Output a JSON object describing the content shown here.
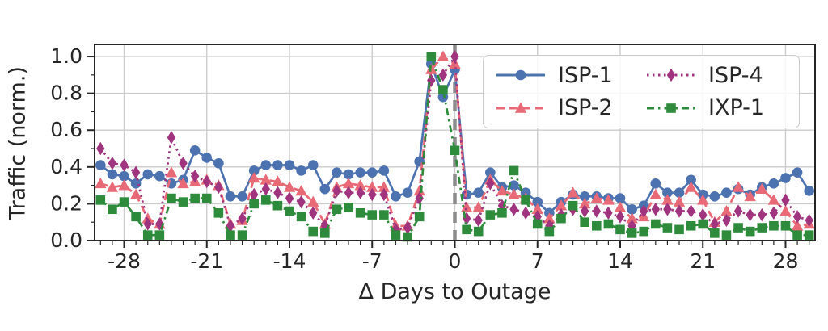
{
  "chart_data": {
    "type": "line",
    "title": "",
    "xlabel": "Δ Days to Outage",
    "ylabel": "Traffic (norm.)",
    "grid": true,
    "legend_position": "upper right",
    "xlim": [
      -30.5,
      30.5
    ],
    "ylim": [
      0,
      1.066
    ],
    "x_ticks": [
      -28,
      -21,
      -14,
      -7,
      0,
      7,
      14,
      21,
      28
    ],
    "x_minor_tick_step": 1,
    "y_ticks": [
      0.0,
      0.2,
      0.4,
      0.6,
      0.8,
      1.0
    ],
    "y_tick_labels": [
      "0.0",
      "0.2",
      "0.4",
      "0.6",
      "0.8",
      "1.0"
    ],
    "y_minor_tick_step": 0.1,
    "outage_line_x": 0,
    "outage_line_color": "#8c8c8c",
    "grid_color": "#cccccc",
    "axis_color": "#262626",
    "x": [
      -30,
      -29,
      -28,
      -27,
      -26,
      -25,
      -24,
      -23,
      -22,
      -21,
      -20,
      -19,
      -18,
      -17,
      -16,
      -15,
      -14,
      -13,
      -12,
      -11,
      -10,
      -9,
      -8,
      -7,
      -6,
      -5,
      -4,
      -3,
      -2,
      -1,
      0,
      1,
      2,
      3,
      4,
      5,
      6,
      7,
      8,
      9,
      10,
      11,
      12,
      13,
      14,
      15,
      16,
      17,
      18,
      19,
      20,
      21,
      22,
      23,
      24,
      25,
      26,
      27,
      28,
      29,
      30
    ],
    "series": [
      {
        "name": "ISP-1",
        "color": "#4C72B0",
        "marker": "circle",
        "line_style": "solid",
        "values": [
          0.41,
          0.36,
          0.35,
          0.31,
          0.36,
          0.35,
          0.31,
          0.33,
          0.49,
          0.45,
          0.42,
          0.24,
          0.24,
          0.38,
          0.41,
          0.41,
          0.41,
          0.38,
          0.41,
          0.28,
          0.37,
          0.36,
          0.37,
          0.37,
          0.38,
          0.24,
          0.26,
          0.43,
          0.96,
          0.78,
          0.93,
          0.25,
          0.26,
          0.37,
          0.29,
          0.3,
          0.26,
          0.21,
          0.15,
          0.21,
          0.25,
          0.24,
          0.24,
          0.23,
          0.23,
          0.17,
          0.19,
          0.31,
          0.26,
          0.26,
          0.33,
          0.25,
          0.24,
          0.26,
          0.28,
          0.25,
          0.29,
          0.31,
          0.34,
          0.37,
          0.27
        ]
      },
      {
        "name": "ISP-2",
        "color": "#E96A77",
        "marker": "triangle",
        "line_style": "dashed",
        "values": [
          0.31,
          0.29,
          0.3,
          0.25,
          0.12,
          0.09,
          0.37,
          0.31,
          0.32,
          0.33,
          0.3,
          0.09,
          0.11,
          0.34,
          0.33,
          0.32,
          0.29,
          0.27,
          0.21,
          0.09,
          0.29,
          0.31,
          0.3,
          0.29,
          0.29,
          0.08,
          0.08,
          0.27,
          0.93,
          1.0,
          0.96,
          0.18,
          0.18,
          0.33,
          0.27,
          0.25,
          0.23,
          0.17,
          0.12,
          0.19,
          0.26,
          0.2,
          0.23,
          0.22,
          0.18,
          0.12,
          0.13,
          0.25,
          0.22,
          0.21,
          0.29,
          0.22,
          0.1,
          0.16,
          0.29,
          0.24,
          0.28,
          0.22,
          0.16,
          0.08,
          0.09
        ]
      },
      {
        "name": "ISP-4",
        "color": "#A0347E",
        "marker": "diamond",
        "line_style": "dotted",
        "values": [
          0.5,
          0.42,
          0.41,
          0.37,
          0.09,
          0.09,
          0.56,
          0.42,
          0.35,
          0.32,
          0.29,
          0.08,
          0.12,
          0.25,
          0.28,
          0.26,
          0.23,
          0.21,
          0.15,
          0.08,
          0.27,
          0.26,
          0.26,
          0.25,
          0.25,
          0.06,
          0.07,
          0.23,
          0.87,
          0.9,
          1.0,
          0.12,
          0.11,
          0.31,
          0.19,
          0.17,
          0.15,
          0.13,
          0.08,
          0.14,
          0.17,
          0.16,
          0.16,
          0.15,
          0.13,
          0.08,
          0.16,
          0.17,
          0.17,
          0.16,
          0.16,
          0.14,
          0.09,
          0.11,
          0.16,
          0.14,
          0.14,
          0.15,
          0.22,
          0.13,
          0.11
        ]
      },
      {
        "name": "IXP-1",
        "color": "#2E8B3C",
        "marker": "square",
        "line_style": "dashdot",
        "values": [
          0.22,
          0.17,
          0.21,
          0.13,
          0.03,
          0.03,
          0.23,
          0.21,
          0.23,
          0.23,
          0.15,
          0.03,
          0.03,
          0.2,
          0.22,
          0.19,
          0.16,
          0.13,
          0.05,
          0.04,
          0.17,
          0.18,
          0.15,
          0.14,
          0.14,
          0.03,
          0.02,
          0.13,
          1.0,
          0.82,
          0.49,
          0.06,
          0.05,
          0.14,
          0.15,
          0.38,
          0.22,
          0.09,
          0.05,
          0.12,
          0.19,
          0.1,
          0.08,
          0.09,
          0.06,
          0.04,
          0.05,
          0.09,
          0.07,
          0.06,
          0.08,
          0.09,
          0.04,
          0.03,
          0.07,
          0.05,
          0.07,
          0.08,
          0.08,
          0.03,
          0.03
        ]
      }
    ]
  }
}
